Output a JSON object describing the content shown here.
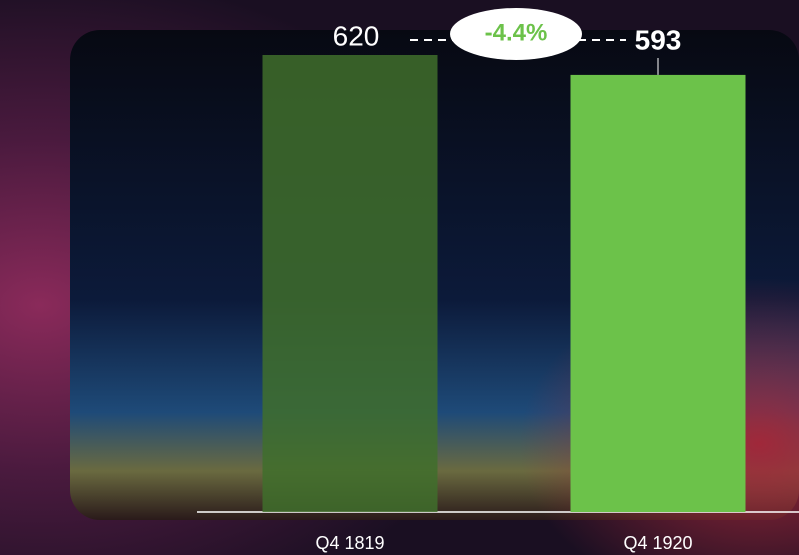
{
  "chart_data": {
    "type": "bar",
    "categories": [
      "Q4 1819",
      "Q4 1920"
    ],
    "values": [
      620,
      593
    ],
    "colors": [
      "#3f6e2c",
      "#6cc24a"
    ],
    "annotation": "-4.4%"
  }
}
